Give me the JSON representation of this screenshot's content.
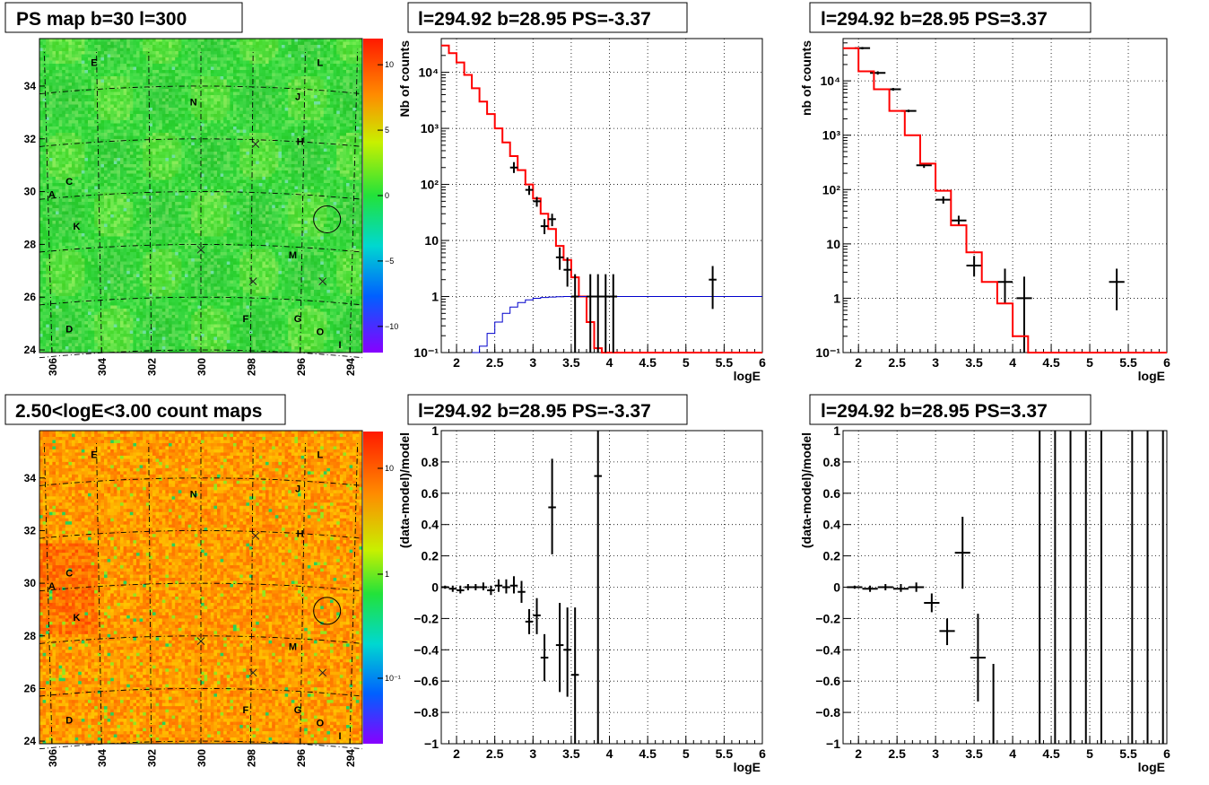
{
  "colors": {
    "model_line": "#ff0000",
    "source_line": "#0000cc",
    "data_points": "#000000",
    "grid": "#000000"
  },
  "panels": {
    "ps_map": {
      "title": "PS map b=30 l=300"
    },
    "count_map": {
      "title": "2.50<logE<3.00 count maps"
    },
    "spec_neg": {
      "title": "l=294.92 b=28.95 PS=-3.37"
    },
    "spec_pos": {
      "title": "l=294.92 b=28.95 PS=3.37"
    },
    "res_neg": {
      "title": "l=294.92 b=28.95 PS=-3.37"
    },
    "res_pos": {
      "title": "l=294.92 b=28.95 PS=3.37"
    }
  },
  "map_axes": {
    "x_ticks": [
      "306",
      "304",
      "302",
      "300",
      "298",
      "296",
      "294"
    ],
    "y_ticks": [
      "24",
      "26",
      "28",
      "30",
      "32",
      "34"
    ],
    "markers": [
      {
        "label": "E",
        "l": 304.3,
        "b": 34.9
      },
      {
        "label": "L",
        "l": 295.2,
        "b": 34.9
      },
      {
        "label": "N",
        "l": 300.3,
        "b": 33.4
      },
      {
        "label": "J",
        "l": 296.1,
        "b": 33.6
      },
      {
        "label": "H",
        "l": 296.0,
        "b": 31.9
      },
      {
        "label": "C",
        "l": 305.3,
        "b": 30.4
      },
      {
        "label": "A",
        "l": 306.0,
        "b": 29.9
      },
      {
        "label": "K",
        "l": 305.0,
        "b": 28.7
      },
      {
        "label": "M",
        "l": 296.3,
        "b": 27.6
      },
      {
        "label": "D",
        "l": 305.3,
        "b": 24.8
      },
      {
        "label": "F",
        "l": 298.2,
        "b": 25.2
      },
      {
        "label": "G",
        "l": 296.1,
        "b": 25.2
      },
      {
        "label": "O",
        "l": 295.2,
        "b": 24.7
      },
      {
        "label": "I",
        "l": 294.4,
        "b": 24.2
      }
    ],
    "crosses": [
      {
        "l": 297.8,
        "b": 31.8
      },
      {
        "l": 300.0,
        "b": 27.8
      },
      {
        "l": 297.9,
        "b": 26.6
      },
      {
        "l": 295.1,
        "b": 26.6
      }
    ],
    "circle": {
      "l": 294.92,
      "b": 28.95
    }
  },
  "colorbars": {
    "ps": {
      "ticks": [
        "10",
        "5",
        "0",
        "−5",
        "−10"
      ]
    },
    "counts": {
      "ticks": [
        "10",
        "1",
        "10⁻¹"
      ]
    }
  },
  "chart_data": [
    {
      "type": "heatmap",
      "panel": "ps_map",
      "title": "PS map b=30 l=300",
      "x_range": [
        306.5,
        293.5
      ],
      "y_range": [
        23.9,
        35.8
      ],
      "z_range": [
        -12,
        12
      ],
      "description_value": "uniform PS values near 0"
    },
    {
      "type": "heatmap",
      "panel": "count_map",
      "title": "2.50<logE<3.00 count maps",
      "x_range": [
        306.5,
        293.5
      ],
      "y_range": [
        23.9,
        35.8
      ],
      "z_scale": "log"
    },
    {
      "type": "line",
      "panel": "spec_neg",
      "title": "l=294.92 b=28.95 PS=-3.37",
      "xlabel": "logE",
      "ylabel": "Nb of counts",
      "xlim": [
        1.8,
        6.0
      ],
      "ylim": [
        0.1,
        40000
      ],
      "yscale": "log",
      "x_ticks": [
        "2",
        "2.5",
        "3",
        "3.5",
        "4",
        "4.5",
        "5",
        "5.5",
        "6"
      ],
      "y_ticks": [
        "10⁻¹",
        "1",
        "10",
        "10²",
        "10³",
        "10⁴"
      ],
      "model": {
        "bin_width": 0.1,
        "x_start": 1.8,
        "values": [
          30000,
          22000,
          15000,
          9000,
          5200,
          3000,
          1800,
          1000,
          560,
          320,
          180,
          100,
          56,
          30,
          16,
          8,
          4.5,
          2.2,
          1.0,
          0.35,
          0.12,
          0.1,
          0.1,
          0.1,
          0.1,
          0.1,
          0.1,
          0.1,
          0.1,
          0.1,
          0.1,
          0.1,
          0.1,
          0.1,
          0.1,
          0.1,
          0.1,
          0.1,
          0.1,
          0.1,
          0.1,
          0.1
        ]
      },
      "source": {
        "x": [
          2.2,
          2.3,
          2.4,
          2.5,
          2.6,
          2.7,
          2.8,
          2.9,
          3.0,
          3.1,
          3.2,
          3.3,
          3.4,
          3.5,
          3.6,
          4.0,
          5.0,
          6.0
        ],
        "y": [
          0.1,
          0.13,
          0.22,
          0.35,
          0.5,
          0.65,
          0.78,
          0.87,
          0.93,
          0.96,
          0.98,
          0.99,
          1.0,
          1.0,
          1.0,
          1.0,
          1.0,
          1.0
        ]
      },
      "points": [
        {
          "x": 2.75,
          "y": 200,
          "xe": 0.05,
          "ylo": 160,
          "yhi": 250
        },
        {
          "x": 2.95,
          "y": 80,
          "xe": 0.05,
          "ylo": 65,
          "yhi": 95
        },
        {
          "x": 3.05,
          "y": 50,
          "xe": 0.05,
          "ylo": 40,
          "yhi": 60
        },
        {
          "x": 3.15,
          "y": 18,
          "xe": 0.05,
          "ylo": 13,
          "yhi": 24
        },
        {
          "x": 3.25,
          "y": 24,
          "xe": 0.05,
          "ylo": 18,
          "yhi": 30
        },
        {
          "x": 3.35,
          "y": 5,
          "xe": 0.05,
          "ylo": 3,
          "yhi": 7.5
        },
        {
          "x": 3.45,
          "y": 3,
          "xe": 0.05,
          "ylo": 1.5,
          "yhi": 5
        },
        {
          "x": 3.55,
          "y": 1,
          "xe": 0.05,
          "ylo": 0.1,
          "yhi": 2.5
        },
        {
          "x": 3.75,
          "y": 1,
          "xe": 0.05,
          "ylo": 0.1,
          "yhi": 2.5
        },
        {
          "x": 3.85,
          "y": 1,
          "xe": 0.05,
          "ylo": 0.1,
          "yhi": 2.5
        },
        {
          "x": 3.95,
          "y": 1,
          "xe": 0.05,
          "ylo": 0.1,
          "yhi": 2.5
        },
        {
          "x": 4.05,
          "y": 1,
          "xe": 0.05,
          "ylo": 0.1,
          "yhi": 2.5
        },
        {
          "x": 5.35,
          "y": 2,
          "xe": 0.05,
          "ylo": 0.6,
          "yhi": 3.5
        }
      ]
    },
    {
      "type": "line",
      "panel": "spec_pos",
      "title": "l=294.92 b=28.95 PS=3.37",
      "xlabel": "logE",
      "ylabel": "nb of counts",
      "xlim": [
        1.8,
        6.0
      ],
      "ylim": [
        0.1,
        60000
      ],
      "yscale": "log",
      "x_ticks": [
        "2",
        "2.5",
        "3",
        "3.5",
        "4",
        "4.5",
        "5",
        "5.5",
        "6"
      ],
      "y_ticks": [
        "10⁻¹",
        "1",
        "10",
        "10²",
        "10³",
        "10⁴"
      ],
      "model": {
        "bin_width": 0.2,
        "x_start": 1.8,
        "values": [
          40000,
          15000,
          7000,
          2800,
          1000,
          300,
          95,
          22,
          7,
          2,
          0.8,
          0.2,
          0.1,
          0.1,
          0.1,
          0.1,
          0.1,
          0.1,
          0.1,
          0.1,
          0.1
        ]
      },
      "points": [
        {
          "x": 2.05,
          "y": 40000,
          "xe": 0.1,
          "ylo": 38000,
          "yhi": 42000
        },
        {
          "x": 2.25,
          "y": 14000,
          "xe": 0.1,
          "ylo": 13000,
          "yhi": 15000
        },
        {
          "x": 2.45,
          "y": 7000,
          "xe": 0.1,
          "ylo": 6600,
          "yhi": 7400
        },
        {
          "x": 2.65,
          "y": 2800,
          "xe": 0.1,
          "ylo": 2650,
          "yhi": 2950
        },
        {
          "x": 2.85,
          "y": 280,
          "xe": 0.1,
          "ylo": 250,
          "yhi": 310
        },
        {
          "x": 3.1,
          "y": 65,
          "xe": 0.1,
          "ylo": 55,
          "yhi": 75
        },
        {
          "x": 3.3,
          "y": 27,
          "xe": 0.1,
          "ylo": 22,
          "yhi": 33
        },
        {
          "x": 3.5,
          "y": 4,
          "xe": 0.1,
          "ylo": 2.5,
          "yhi": 6
        },
        {
          "x": 3.9,
          "y": 2,
          "xe": 0.1,
          "ylo": 0.8,
          "yhi": 3.5
        },
        {
          "x": 4.15,
          "y": 1,
          "xe": 0.1,
          "ylo": 0.1,
          "yhi": 2.5
        },
        {
          "x": 5.35,
          "y": 2,
          "xe": 0.1,
          "ylo": 0.6,
          "yhi": 3.5
        }
      ]
    },
    {
      "type": "scatter",
      "panel": "res_neg",
      "title": "l=294.92 b=28.95 PS=-3.37",
      "xlabel": "logE",
      "ylabel": "(data-model)/model",
      "xlim": [
        1.8,
        6.0
      ],
      "ylim": [
        -1,
        1
      ],
      "x_ticks": [
        "2",
        "2.5",
        "3",
        "3.5",
        "4",
        "4.5",
        "5",
        "5.5",
        "6"
      ],
      "y_ticks": [
        "−1",
        "−0.8",
        "−0.6",
        "−0.4",
        "−0.2",
        "0",
        "0.2",
        "0.4",
        "0.6",
        "0.8",
        "1"
      ],
      "points": [
        {
          "x": 1.85,
          "y": 0.0,
          "xe": 0.05,
          "ylo": -0.01,
          "yhi": 0.01
        },
        {
          "x": 1.95,
          "y": -0.01,
          "xe": 0.05,
          "ylo": -0.03,
          "yhi": 0.01
        },
        {
          "x": 2.05,
          "y": -0.02,
          "xe": 0.05,
          "ylo": -0.04,
          "yhi": 0.01
        },
        {
          "x": 2.15,
          "y": 0.0,
          "xe": 0.05,
          "ylo": -0.02,
          "yhi": 0.02
        },
        {
          "x": 2.25,
          "y": 0.0,
          "xe": 0.05,
          "ylo": -0.02,
          "yhi": 0.02
        },
        {
          "x": 2.35,
          "y": 0.0,
          "xe": 0.05,
          "ylo": -0.02,
          "yhi": 0.03
        },
        {
          "x": 2.45,
          "y": -0.02,
          "xe": 0.05,
          "ylo": -0.05,
          "yhi": 0.01
        },
        {
          "x": 2.55,
          "y": 0.01,
          "xe": 0.05,
          "ylo": -0.03,
          "yhi": 0.05
        },
        {
          "x": 2.65,
          "y": 0.0,
          "xe": 0.05,
          "ylo": -0.04,
          "yhi": 0.05
        },
        {
          "x": 2.75,
          "y": 0.01,
          "xe": 0.05,
          "ylo": -0.04,
          "yhi": 0.07
        },
        {
          "x": 2.85,
          "y": -0.03,
          "xe": 0.05,
          "ylo": -0.1,
          "yhi": 0.04
        },
        {
          "x": 2.95,
          "y": -0.22,
          "xe": 0.05,
          "ylo": -0.3,
          "yhi": -0.14
        },
        {
          "x": 3.05,
          "y": -0.18,
          "xe": 0.05,
          "ylo": -0.3,
          "yhi": -0.07
        },
        {
          "x": 3.15,
          "y": -0.45,
          "xe": 0.05,
          "ylo": -0.6,
          "yhi": -0.3
        },
        {
          "x": 3.25,
          "y": 0.51,
          "xe": 0.05,
          "ylo": 0.21,
          "yhi": 0.82
        },
        {
          "x": 3.35,
          "y": -0.37,
          "xe": 0.05,
          "ylo": -0.67,
          "yhi": -0.1
        },
        {
          "x": 3.45,
          "y": -0.4,
          "xe": 0.05,
          "ylo": -0.7,
          "yhi": -0.13
        },
        {
          "x": 3.55,
          "y": -0.56,
          "xe": 0.05,
          "ylo": -1.0,
          "yhi": -0.13
        },
        {
          "x": 3.85,
          "y": 0.71,
          "xe": 0.05,
          "ylo": -1.0,
          "yhi": 1.0
        }
      ]
    },
    {
      "type": "scatter",
      "panel": "res_pos",
      "title": "l=294.92 b=28.95 PS=3.37",
      "xlabel": "logE",
      "ylabel": "(data-model)/model",
      "xlim": [
        1.8,
        6.0
      ],
      "ylim": [
        -1,
        1
      ],
      "x_ticks": [
        "2",
        "2.5",
        "3",
        "3.5",
        "4",
        "4.5",
        "5",
        "5.5",
        "6"
      ],
      "y_ticks": [
        "−1",
        "−0.8",
        "−0.6",
        "−0.4",
        "−0.2",
        "0",
        "0.2",
        "0.4",
        "0.6",
        "0.8",
        "1"
      ],
      "points": [
        {
          "x": 1.95,
          "y": 0.0,
          "xe": 0.1,
          "ylo": -0.01,
          "yhi": 0.01
        },
        {
          "x": 2.15,
          "y": -0.01,
          "xe": 0.1,
          "ylo": -0.03,
          "yhi": 0.01
        },
        {
          "x": 2.35,
          "y": 0.0,
          "xe": 0.1,
          "ylo": -0.02,
          "yhi": 0.02
        },
        {
          "x": 2.55,
          "y": -0.01,
          "xe": 0.1,
          "ylo": -0.03,
          "yhi": 0.02
        },
        {
          "x": 2.75,
          "y": 0.0,
          "xe": 0.1,
          "ylo": -0.03,
          "yhi": 0.03
        },
        {
          "x": 2.95,
          "y": -0.1,
          "xe": 0.1,
          "ylo": -0.16,
          "yhi": -0.04
        },
        {
          "x": 3.15,
          "y": -0.28,
          "xe": 0.1,
          "ylo": -0.37,
          "yhi": -0.2
        },
        {
          "x": 3.35,
          "y": 0.22,
          "xe": 0.1,
          "ylo": -0.01,
          "yhi": 0.45
        },
        {
          "x": 3.55,
          "y": -0.45,
          "xe": 0.1,
          "ylo": -0.73,
          "yhi": -0.17
        },
        {
          "x": 3.75,
          "y": -1.0,
          "xe": 0.0,
          "ylo": -1.0,
          "yhi": -0.49
        },
        {
          "x": 4.35,
          "y": 1.0,
          "xe": 0.0,
          "ylo": -1.0,
          "yhi": 1.0
        },
        {
          "x": 4.55,
          "y": 1.0,
          "xe": 0.0,
          "ylo": -1.0,
          "yhi": 1.0
        },
        {
          "x": 4.75,
          "y": 1.0,
          "xe": 0.0,
          "ylo": -1.0,
          "yhi": 1.0
        },
        {
          "x": 4.95,
          "y": 1.0,
          "xe": 0.0,
          "ylo": -1.0,
          "yhi": 1.0
        },
        {
          "x": 5.15,
          "y": 1.0,
          "xe": 0.0,
          "ylo": -1.0,
          "yhi": 1.0
        },
        {
          "x": 5.55,
          "y": 1.0,
          "xe": 0.0,
          "ylo": -1.0,
          "yhi": 1.0
        },
        {
          "x": 5.75,
          "y": 1.0,
          "xe": 0.0,
          "ylo": -1.0,
          "yhi": 1.0
        },
        {
          "x": 5.95,
          "y": 1.0,
          "xe": 0.0,
          "ylo": -1.0,
          "yhi": 1.0
        }
      ]
    }
  ]
}
